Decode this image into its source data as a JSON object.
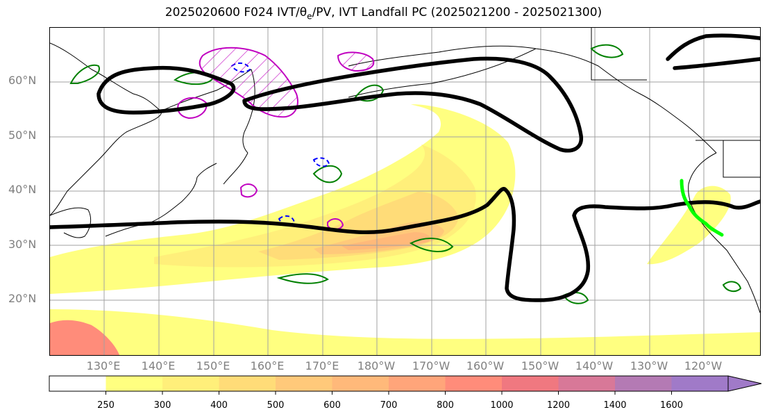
{
  "title": {
    "prefix": "2025020600 F024 IVT/",
    "theta_symbol": "θ",
    "theta_sub": "e",
    "suffix": "/PV, IVT Landfall PC (2025021200 - 2025021300)"
  },
  "map": {
    "lat_labels": [
      "60°N",
      "50°N",
      "40°N",
      "30°N",
      "20°N"
    ],
    "lon_labels": [
      "130°E",
      "140°E",
      "150°E",
      "160°E",
      "170°E",
      "180°W",
      "170°W",
      "160°W",
      "150°W",
      "140°W",
      "130°W",
      "120°W"
    ],
    "colors": {
      "land_outline": "#000000",
      "grid": "#a0a0a0",
      "pv_contour": "#000000",
      "theta_e_positive": "#008000",
      "theta_e_negative": "#0000ff",
      "anomaly_magenta": "#c000c0",
      "landfall_segment": "#00ff00"
    }
  },
  "colorbar": {
    "levels": [
      "250",
      "300",
      "400",
      "500",
      "600",
      "700",
      "800",
      "1000",
      "1200",
      "1400",
      "1600"
    ],
    "colors": [
      "#ffffff",
      "#ffff80",
      "#ffef7a",
      "#ffdc78",
      "#ffc97a",
      "#ffb97a",
      "#ffa57a",
      "#ff8c7a",
      "#f07880",
      "#d87898",
      "#b47ab4",
      "#a07ac8"
    ]
  }
}
